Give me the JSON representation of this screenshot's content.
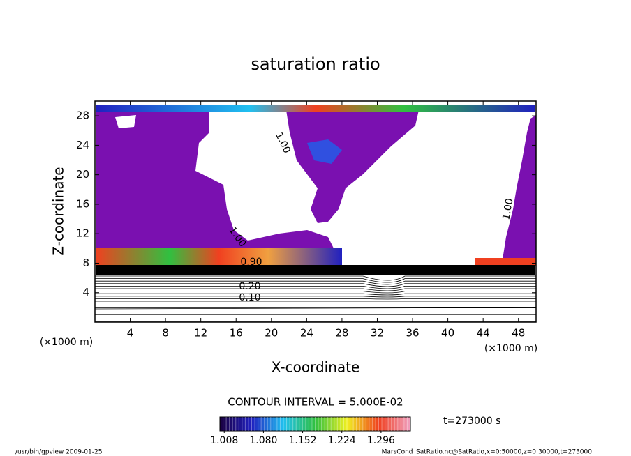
{
  "chart_data": {
    "type": "contour",
    "title": "saturation ratio",
    "x_label": "X-coordinate",
    "y_label": "Z-coordinate",
    "x_unit": "(×1000 m)",
    "y_unit": "(×1000 m)",
    "xlim": [
      0,
      50
    ],
    "xticks": [
      4,
      8,
      12,
      16,
      20,
      24,
      28,
      32,
      36,
      40,
      44,
      48
    ],
    "ylim": [
      0,
      30
    ],
    "yticks": [
      4,
      8,
      12,
      16,
      20,
      24,
      28
    ],
    "contour_labels": [
      {
        "value": 1,
        "label": "1.00"
      },
      {
        "value": 1,
        "label": "1.00"
      },
      {
        "value": 1,
        "label": "1.00"
      },
      {
        "value": 0.9,
        "label": "0.90"
      },
      {
        "value": 0.2,
        "label": "0.20"
      },
      {
        "value": 0.1,
        "label": "0.10"
      }
    ],
    "contour_interval": "CONTOUR INTERVAL = 5.000E-02",
    "time_label": "t=273000 s",
    "clim": [
      1.0,
      1.35
    ],
    "colormap": [
      "#1a0040",
      "#2020c0",
      "#20c0f0",
      "#30c040",
      "#f0f020",
      "#f04020",
      "#f0a0c0"
    ],
    "cticks": [
      1.008,
      {
        "value": 1.08,
        "label": "1.080"
      },
      1.152,
      1.224,
      1.296
    ],
    "footer_left": "/usr/bin/gpview  2009-01-25",
    "footer_right": "MarsCond_SatRatio.nc@SatRatio,x=0:50000,z=0:30000,t=273000"
  }
}
